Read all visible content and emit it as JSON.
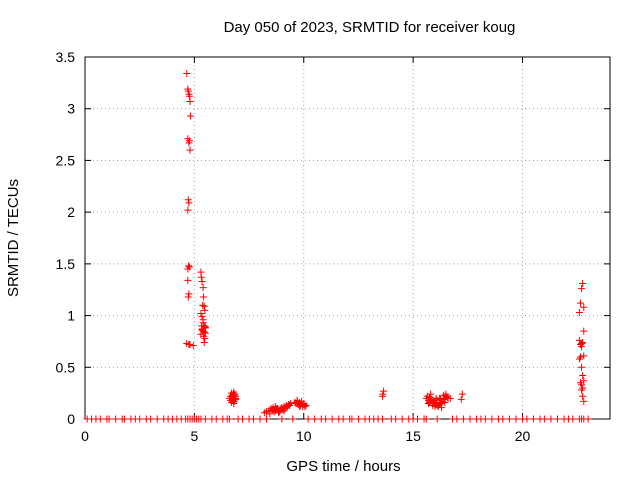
{
  "chart_data": {
    "type": "scatter",
    "title": "Day 050 of 2023, SRMTID for receiver koug",
    "xlabel": "GPS time / hours",
    "ylabel": "SRMTID / TECUs",
    "xlim": [
      0,
      24
    ],
    "ylim": [
      0,
      3.5
    ],
    "xticks": [
      "0",
      "5",
      "10",
      "15",
      "20"
    ],
    "yticks": [
      "0",
      "0.5",
      "1",
      "1.5",
      "2",
      "2.5",
      "3",
      "3.5"
    ],
    "grid": true,
    "marker": "+",
    "color": "#ff0000",
    "series": [
      {
        "x": [
          0.1,
          0.3,
          0.5,
          0.7,
          1.0,
          1.1,
          1.4,
          1.7,
          1.8,
          2.1,
          2.3,
          2.5,
          2.8,
          3.0,
          3.3,
          3.6,
          3.8,
          4.0,
          4.2,
          4.4,
          4.6,
          4.7,
          4.8,
          4.9,
          5.0,
          5.1,
          5.2,
          5.3,
          5.5,
          5.8,
          6.0,
          6.3,
          6.5,
          6.6,
          7.0,
          7.2,
          7.5,
          7.7,
          8.0,
          8.3,
          9.0,
          9.5,
          10.2,
          10.5,
          10.8,
          11.0,
          11.3,
          11.6,
          11.8,
          12.1,
          12.2,
          12.5,
          12.8,
          13.0,
          13.2,
          13.4,
          13.6,
          14.0,
          14.2,
          14.5,
          14.8,
          15.0,
          15.2,
          15.5,
          15.6,
          16.1,
          16.8,
          17.0,
          17.3,
          17.6,
          17.9,
          18.1,
          18.3,
          18.6,
          18.9,
          19.1,
          19.4,
          19.7,
          20.0,
          20.2,
          20.5,
          20.8,
          21.0,
          21.3,
          21.6,
          21.9,
          22.1,
          22.3,
          22.6,
          22.7,
          22.8,
          23.0
        ],
        "y": [
          0,
          0,
          0,
          0,
          0,
          0,
          0,
          0,
          0,
          0,
          0,
          0,
          0,
          0,
          0,
          0,
          0,
          0,
          0,
          0,
          0,
          0,
          0,
          0,
          0,
          0,
          0,
          0,
          0,
          0,
          0,
          0,
          0,
          0,
          0,
          0,
          0,
          0,
          0,
          0,
          0,
          0,
          0,
          0,
          0,
          0,
          0,
          0,
          0,
          0,
          0,
          0,
          0,
          0,
          0,
          0,
          0,
          0,
          0,
          0,
          0,
          0,
          0,
          0,
          0,
          0,
          0,
          0,
          0,
          0,
          0,
          0,
          0,
          0,
          0,
          0,
          0,
          0,
          0,
          0,
          0,
          0,
          0,
          0,
          0,
          0,
          0,
          0,
          0,
          0,
          0,
          0
        ]
      },
      {
        "x": [
          4.65,
          4.7,
          4.72,
          4.75,
          4.78,
          4.8,
          4.82,
          4.7,
          4.75,
          4.78,
          4.8,
          4.72,
          4.75,
          4.7,
          4.73,
          4.78,
          4.7,
          4.75,
          4.72,
          4.8,
          4.65,
          4.75,
          4.7,
          4.95
        ],
        "y": [
          3.34,
          3.19,
          3.17,
          3.14,
          3.12,
          3.07,
          2.93,
          2.71,
          2.67,
          2.69,
          2.6,
          2.12,
          2.09,
          2.02,
          1.48,
          1.47,
          1.34,
          1.21,
          1.18,
          0.72,
          0.73,
          0.72,
          1.45,
          0.71
        ]
      },
      {
        "x": [
          5.3,
          5.32,
          5.35,
          5.4,
          5.42,
          5.45,
          5.48,
          5.3,
          5.35,
          5.4,
          5.45,
          5.5,
          5.35,
          5.4,
          5.45,
          5.5,
          5.3,
          5.35,
          5.42,
          5.48,
          5.45,
          5.5,
          5.4,
          5.38,
          5.33
        ],
        "y": [
          1.42,
          1.37,
          1.33,
          1.27,
          1.18,
          1.09,
          1.05,
          1.02,
          0.99,
          0.93,
          0.9,
          0.88,
          0.87,
          0.85,
          0.84,
          0.83,
          0.82,
          0.86,
          0.8,
          0.78,
          0.74,
          0.89,
          0.96,
          1.1,
          0.9
        ]
      },
      {
        "x": [
          6.6,
          6.65,
          6.7,
          6.72,
          6.75,
          6.78,
          6.8,
          6.82,
          6.85,
          6.88,
          6.9,
          6.7,
          6.75,
          6.8,
          6.85,
          6.65,
          6.72,
          6.78,
          6.82,
          6.88
        ],
        "y": [
          0.2,
          0.22,
          0.25,
          0.18,
          0.21,
          0.24,
          0.26,
          0.17,
          0.2,
          0.22,
          0.19,
          0.16,
          0.23,
          0.15,
          0.24,
          0.18,
          0.21,
          0.19,
          0.23,
          0.2
        ]
      },
      {
        "x": [
          8.2,
          8.3,
          8.4,
          8.5,
          8.55,
          8.6,
          8.65,
          8.7,
          8.75,
          8.8,
          8.85,
          8.9,
          8.95,
          9.0,
          9.05,
          9.1,
          9.15,
          9.2,
          9.25,
          9.3,
          9.35,
          9.4,
          8.45,
          8.7,
          8.9,
          9.1,
          8.6,
          8.8
        ],
        "y": [
          0.06,
          0.07,
          0.08,
          0.1,
          0.09,
          0.11,
          0.07,
          0.08,
          0.1,
          0.09,
          0.06,
          0.08,
          0.1,
          0.11,
          0.09,
          0.12,
          0.1,
          0.13,
          0.12,
          0.14,
          0.13,
          0.15,
          0.05,
          0.12,
          0.07,
          0.08,
          0.09,
          0.1
        ]
      },
      {
        "x": [
          9.6,
          9.65,
          9.7,
          9.75,
          9.8,
          9.85,
          9.9,
          9.95,
          10.0,
          10.05,
          10.1,
          9.7,
          9.8,
          9.9,
          10.0
        ],
        "y": [
          0.16,
          0.15,
          0.17,
          0.14,
          0.16,
          0.13,
          0.15,
          0.12,
          0.14,
          0.12,
          0.13,
          0.18,
          0.12,
          0.17,
          0.15
        ]
      },
      {
        "x": [
          13.6,
          13.65,
          13.62
        ],
        "y": [
          0.22,
          0.27,
          0.24
        ]
      },
      {
        "x": [
          15.6,
          15.65,
          15.7,
          15.75,
          15.8,
          15.85,
          15.9,
          15.95,
          16.0,
          16.05,
          16.1,
          16.15,
          16.2,
          16.25,
          16.3,
          16.35,
          16.4,
          16.45,
          16.5,
          16.55,
          16.6,
          15.7,
          15.8,
          15.9,
          16.0,
          16.1,
          16.2,
          16.3,
          16.4,
          16.5,
          15.75,
          16.05,
          16.25,
          16.45,
          16.7
        ],
        "y": [
          0.2,
          0.22,
          0.18,
          0.21,
          0.17,
          0.19,
          0.16,
          0.18,
          0.15,
          0.14,
          0.13,
          0.12,
          0.14,
          0.16,
          0.15,
          0.17,
          0.19,
          0.2,
          0.22,
          0.21,
          0.2,
          0.15,
          0.24,
          0.13,
          0.12,
          0.18,
          0.2,
          0.11,
          0.23,
          0.24,
          0.16,
          0.2,
          0.19,
          0.16,
          0.2
        ]
      },
      {
        "x": [
          17.2,
          17.25
        ],
        "y": [
          0.19,
          0.24
        ]
      },
      {
        "x": [
          22.6,
          22.65,
          22.7,
          22.75,
          22.8,
          22.6,
          22.65,
          22.7,
          22.75,
          22.8,
          22.6,
          22.65,
          22.7,
          22.75,
          22.8,
          22.65,
          22.7,
          22.75,
          22.8,
          22.7,
          22.75,
          22.8,
          22.65,
          22.7
        ],
        "y": [
          1.03,
          1.12,
          1.26,
          1.31,
          1.08,
          0.76,
          0.72,
          0.7,
          0.74,
          0.85,
          0.58,
          0.6,
          0.5,
          0.42,
          0.61,
          0.35,
          0.33,
          0.3,
          0.37,
          0.28,
          0.22,
          0.17,
          0.6,
          0.73
        ]
      }
    ]
  }
}
